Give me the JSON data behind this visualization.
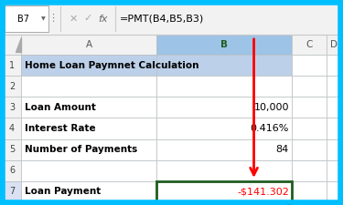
{
  "title": "Home Loan Paymnet Calculation",
  "cell_ref": "B7",
  "formula": "=PMT(B4,B5,B3)",
  "rows": [
    {
      "row": 1,
      "col_a": "Home Loan Paymnet Calculation",
      "col_b": "",
      "merged": true
    },
    {
      "row": 2,
      "col_a": "",
      "col_b": ""
    },
    {
      "row": 3,
      "col_a": "Loan Amount",
      "col_b": "10,000"
    },
    {
      "row": 4,
      "col_a": "Interest Rate",
      "col_b": "0.416%"
    },
    {
      "row": 5,
      "col_a": "Number of Payments",
      "col_b": "84"
    },
    {
      "row": 6,
      "col_a": "",
      "col_b": ""
    },
    {
      "row": 7,
      "col_a": "Loan Payment",
      "col_b": "-$141.302"
    }
  ],
  "outer_border_color": "#00BFFF",
  "title_bg": "#BDD0E9",
  "b_col_header_bg": "#9DC3E6",
  "b7_border_color": "#1F5C1F",
  "b7_text_color": "#FF0000",
  "arrow_color": "#FF0000",
  "header_bg": "#F2F2F2",
  "cell_bg": "#FFFFFF",
  "grid_color": "#C0C0C0",
  "fb_bg": "#F2F2F2",
  "fb_border": "#C8C8C8"
}
